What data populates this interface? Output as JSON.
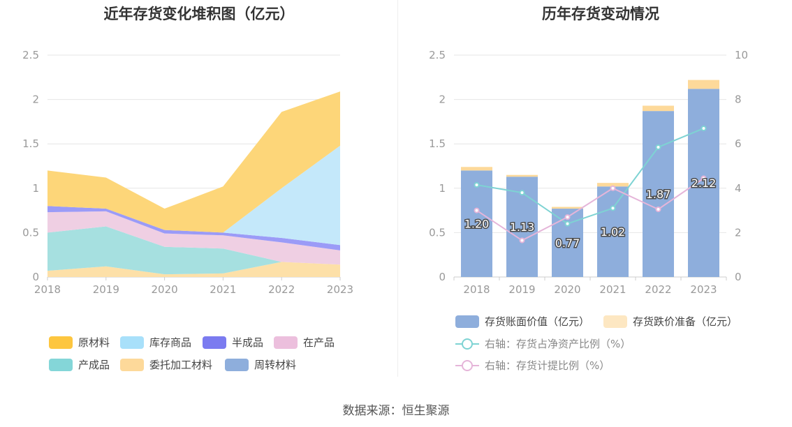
{
  "source": "数据来源：恒生聚源",
  "chart_data": [
    {
      "type": "area",
      "title": "近年存货变化堆积图（亿元）",
      "categories": [
        "2018",
        "2019",
        "2020",
        "2021",
        "2022",
        "2023"
      ],
      "ylim": [
        0,
        2.5
      ],
      "yticks": [
        "0",
        "0.5",
        "1",
        "1.5",
        "2",
        "2.5"
      ],
      "stack_order_bottom_to_top": [
        "委托加工材料",
        "产成品",
        "在产品",
        "半成品",
        "库存商品",
        "原材料"
      ],
      "series": [
        {
          "name": "委托加工材料",
          "color": "#fde0a8",
          "values": [
            0.07,
            0.12,
            0.03,
            0.04,
            0.17,
            0.14
          ]
        },
        {
          "name": "产成品",
          "color": "#a6e0e0",
          "values": [
            0.43,
            0.45,
            0.31,
            0.28,
            0.0,
            0.0
          ]
        },
        {
          "name": "在产品",
          "color": "#efcfe3",
          "values": [
            0.23,
            0.17,
            0.15,
            0.15,
            0.22,
            0.16
          ]
        },
        {
          "name": "半成品",
          "color": "#9b9bf7",
          "values": [
            0.07,
            0.03,
            0.04,
            0.03,
            0.05,
            0.06
          ]
        },
        {
          "name": "库存商品",
          "color": "#c4e8fa",
          "values": [
            0.0,
            0.0,
            0.0,
            0.0,
            0.56,
            1.12
          ]
        },
        {
          "name": "原材料",
          "color": "#fdd679",
          "values": [
            0.4,
            0.35,
            0.24,
            0.52,
            0.86,
            0.61
          ]
        },
        {
          "name": "周转材料",
          "color": "#8eaedc",
          "values": [
            0,
            0,
            0,
            0,
            0,
            0
          ]
        }
      ],
      "legend": [
        {
          "name": "原材料",
          "color": "#fdc63f"
        },
        {
          "name": "库存商品",
          "color": "#a8e0fa"
        },
        {
          "name": "半成品",
          "color": "#7b7bf0"
        },
        {
          "name": "在产品",
          "color": "#ecbfdd"
        },
        {
          "name": "产成品",
          "color": "#84d6d8"
        },
        {
          "name": "委托加工材料",
          "color": "#fdd99a"
        },
        {
          "name": "周转材料",
          "color": "#8eaedc"
        }
      ],
      "legend_position": "bottom"
    },
    {
      "type": "bar",
      "title": "历年存货变动情况",
      "categories": [
        "2018",
        "2019",
        "2020",
        "2021",
        "2022",
        "2023"
      ],
      "ylim": [
        0,
        2.5
      ],
      "yticks": [
        "0",
        "0.5",
        "1",
        "1.5",
        "2",
        "2.5"
      ],
      "y2lim": [
        0,
        10
      ],
      "y2ticks": [
        "0",
        "2",
        "4",
        "6",
        "8",
        "10"
      ],
      "bars": [
        {
          "name": "存货账面价值（亿元）",
          "color": "#8eaedc",
          "values": [
            1.2,
            1.13,
            0.77,
            1.02,
            1.87,
            2.12
          ],
          "labels": [
            "1.20",
            "1.13",
            "0.77",
            "1.02",
            "1.87",
            "2.12"
          ]
        },
        {
          "name": "存货跌价准备（亿元）",
          "color": "#fdd99a",
          "values": [
            0.04,
            0.02,
            0.02,
            0.04,
            0.06,
            0.1
          ]
        }
      ],
      "lines": [
        {
          "name": "右轴：存货占净资产比例（%）",
          "color": "#7ed3d3",
          "values": [
            4.15,
            3.8,
            2.4,
            3.1,
            5.85,
            6.7
          ]
        },
        {
          "name": "右轴：存货计提比例（%）",
          "color": "#e5b5d9",
          "values": [
            3.0,
            1.65,
            2.7,
            4.0,
            3.05,
            4.45
          ]
        }
      ],
      "legend_position": "bottom"
    }
  ]
}
